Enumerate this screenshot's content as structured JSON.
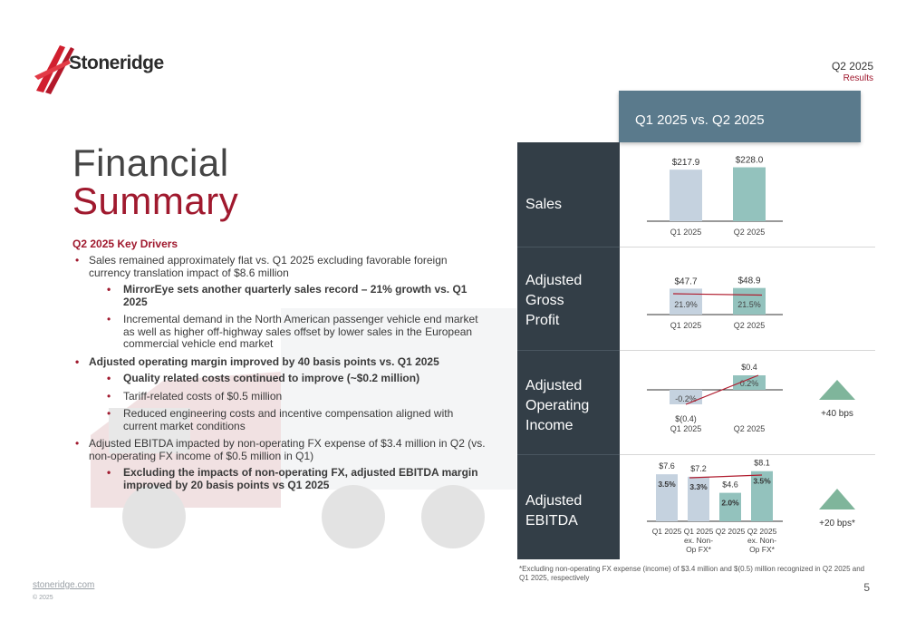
{
  "header": {
    "brand": "Stoneridge",
    "quarter": "Q2 2025",
    "subtitle": "Results"
  },
  "title": {
    "line1": "Financial",
    "line2": "Summary"
  },
  "drivers": {
    "heading": "Q2 2025 Key Drivers",
    "b1": "Sales remained approximately flat vs. Q1 2025 excluding favorable foreign currency translation impact of $8.6 million",
    "b1_1": "MirrorEye sets another quarterly sales record – 21% growth vs. Q1 2025",
    "b1_2": "Incremental demand in the North American passenger vehicle end market as well as higher off-highway sales offset by lower sales in the European commercial vehicle end market",
    "b2": "Adjusted operating margin improved by 40 basis points vs. Q1 2025",
    "b2_1": "Quality related costs continued to improve (~$0.2 million)",
    "b2_2": "Tariff-related costs of $0.5 million",
    "b2_3": "Reduced engineering costs and incentive compensation aligned with current market conditions",
    "b3": "Adjusted EBITDA impacted by non-operating FX expense of $3.4 million in Q2 (vs. non-operating FX income of $0.5 million in Q1)",
    "b3_1": "Excluding the impacts of non-operating FX, adjusted EBITDA margin improved by 20 basis points vs Q1 2025"
  },
  "comparison": {
    "heading": "Q1 2025 vs. Q2 2025",
    "rows": {
      "sales": "Sales",
      "gp1": "Adjusted",
      "gp2": "Gross",
      "gp3": "Profit",
      "oi1": "Adjusted",
      "oi2": "Operating",
      "oi3": "Income",
      "eb1": "Adjusted",
      "eb2": "EBITDA"
    },
    "oi_change": "+40 bps",
    "ebitda_change": "+20 bps*"
  },
  "chart_data": [
    {
      "type": "bar",
      "name_row": "Sales",
      "categories": [
        "Q1 2025",
        "Q2 2025"
      ],
      "values": [
        217.9,
        228.0
      ],
      "labels": [
        "$217.9",
        "$228.0"
      ],
      "colors": [
        "#c5d2df",
        "#93c2bd"
      ]
    },
    {
      "type": "bar",
      "name_row": "Adjusted Gross Profit",
      "categories": [
        "Q1 2025",
        "Q2 2025"
      ],
      "values": [
        47.7,
        48.9
      ],
      "labels": [
        "$47.7",
        "$48.9"
      ],
      "margins": [
        "21.9%",
        "21.5%"
      ],
      "colors": [
        "#c5d2df",
        "#93c2bd"
      ]
    },
    {
      "type": "bar",
      "name_row": "Adjusted Operating Income",
      "categories": [
        "Q1 2025",
        "Q2 2025"
      ],
      "values": [
        -0.4,
        0.4
      ],
      "labels": [
        "$(0.4)",
        "$0.4"
      ],
      "margins": [
        "-0.2%",
        "0.2%"
      ],
      "colors": [
        "#c5d2df",
        "#93c2bd"
      ]
    },
    {
      "type": "bar",
      "name_row": "Adjusted EBITDA",
      "categories": [
        "Q1 2025",
        "Q1 2025 ex. Non-Op FX*",
        "Q2 2025",
        "Q2 2025 ex. Non-Op FX*"
      ],
      "values": [
        7.6,
        7.2,
        4.6,
        8.1
      ],
      "labels": [
        "$7.6",
        "$7.2",
        "$4.6",
        "$8.1"
      ],
      "margins": [
        "3.5%",
        "3.3%",
        "2.0%",
        "3.5%"
      ],
      "colors": [
        "#c5d2df",
        "#c5d2df",
        "#93c2bd",
        "#93c2bd"
      ]
    }
  ],
  "footnote": "*Excluding non-operating FX expense (income) of $3.4 million and $(0.5) million recognized in Q2 2025 and Q1 2025, respectively",
  "footer": {
    "link": "stoneridge.com",
    "copyright": "© 2025",
    "page": "5"
  },
  "colors": {
    "brand_red": "#a0192e",
    "panel_dark": "#333e47",
    "panel_head": "#5a7a8c",
    "up_green": "#7fb59b"
  }
}
